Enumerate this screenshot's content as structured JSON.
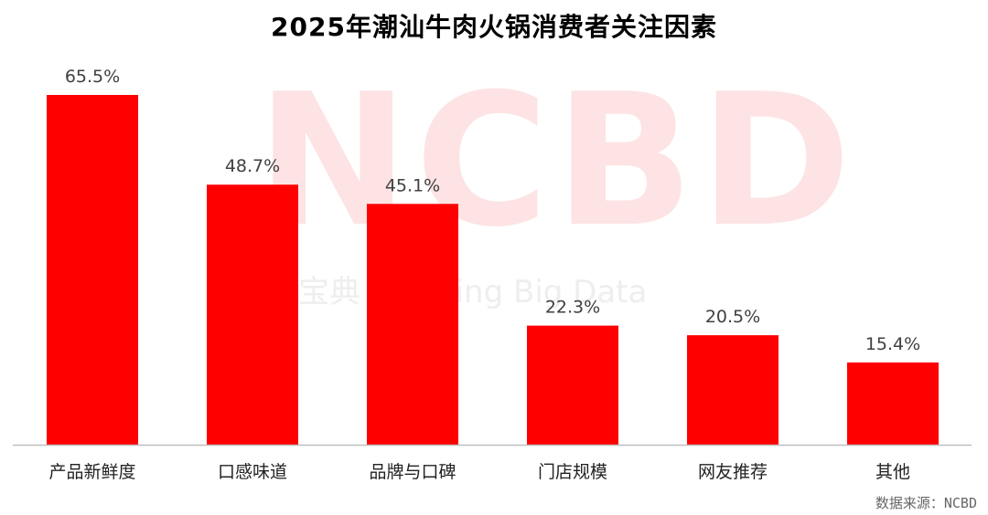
{
  "title": "2025年潮汕牛肉火锅消费者关注因素",
  "watermark": {
    "main": "NCBD",
    "sub": "宝典 Catering Big Data"
  },
  "source": "数据来源：NCBD",
  "colors": {
    "bar": "#ff0000",
    "axis": "#bfbfbf"
  },
  "chart_data": {
    "type": "bar",
    "title": "2025年潮汕牛肉火锅消费者关注因素",
    "categories": [
      "产品新鲜度",
      "口感味道",
      "品牌与口碑",
      "门店规模",
      "网友推荐",
      "其他"
    ],
    "values": [
      65.5,
      48.7,
      45.1,
      22.3,
      20.5,
      15.4
    ],
    "value_labels": [
      "65.5%",
      "48.7%",
      "45.1%",
      "22.3%",
      "20.5%",
      "15.4%"
    ],
    "unit": "%",
    "ylim": [
      0,
      70
    ],
    "grid": false,
    "legend": "none"
  }
}
